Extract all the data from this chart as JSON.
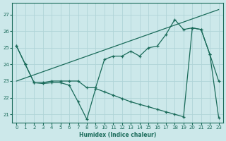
{
  "bg_color": "#cce8ea",
  "grid_color": "#b0d4d8",
  "line_color": "#1a6b5a",
  "xlabel": "Humidex (Indice chaleur)",
  "xlim": [
    -0.5,
    23.5
  ],
  "ylim": [
    20.5,
    27.7
  ],
  "yticks": [
    21,
    22,
    23,
    24,
    25,
    26,
    27
  ],
  "xticks": [
    0,
    1,
    2,
    3,
    4,
    5,
    6,
    7,
    8,
    9,
    10,
    11,
    12,
    13,
    14,
    15,
    16,
    17,
    18,
    19,
    20,
    21,
    22,
    23
  ],
  "line1_x": [
    0,
    23
  ],
  "line1_y": [
    23.0,
    27.3
  ],
  "line2_x": [
    0,
    1,
    2,
    3,
    4,
    5,
    6,
    7,
    8,
    9,
    10,
    11,
    12,
    13,
    14,
    15,
    16,
    17,
    18,
    19,
    20,
    21,
    22,
    23
  ],
  "line2_y": [
    25.1,
    24.0,
    22.9,
    22.9,
    23.0,
    23.0,
    23.0,
    23.0,
    22.6,
    22.6,
    24.3,
    24.5,
    24.5,
    24.8,
    24.5,
    25.0,
    25.1,
    25.8,
    26.7,
    26.1,
    26.2,
    26.1,
    24.6,
    23.0
  ],
  "line3_x": [
    0,
    1,
    2,
    3,
    4,
    5,
    6,
    7,
    8,
    9,
    10,
    11,
    12,
    13,
    14,
    15,
    16,
    17,
    18,
    19,
    20,
    21,
    22,
    23
  ],
  "line3_y": [
    25.1,
    24.0,
    22.9,
    22.85,
    22.9,
    22.9,
    22.75,
    21.75,
    20.7,
    22.55,
    22.35,
    22.15,
    21.95,
    21.75,
    21.6,
    21.45,
    21.3,
    21.15,
    21.0,
    20.85,
    26.2,
    26.1,
    24.6,
    20.8
  ]
}
